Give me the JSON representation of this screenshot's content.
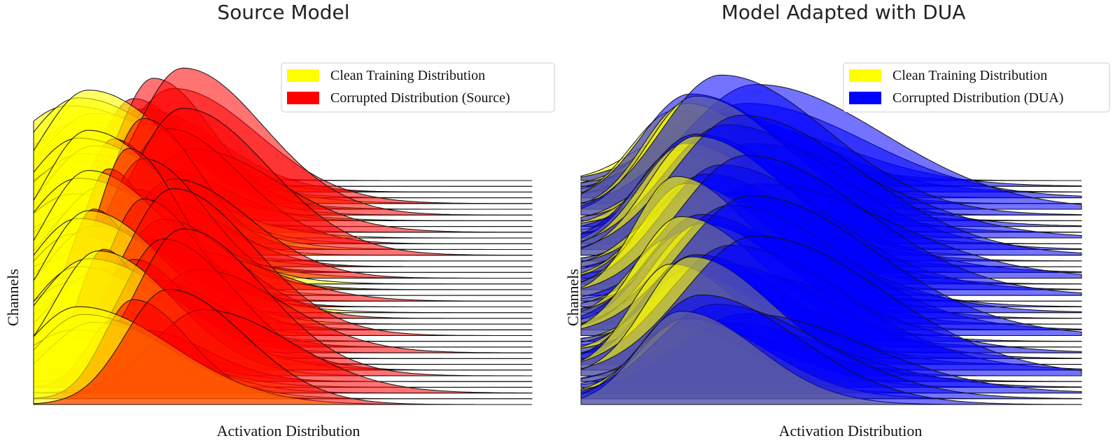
{
  "chart_data": [
    {
      "type": "area",
      "subtype": "ridgeline",
      "title": "Source Model",
      "xlabel": "Activation Distribution",
      "ylabel": "Channels",
      "x_ticks": "none",
      "y_ticks": "none",
      "grid": false,
      "legend_position": "top-right",
      "legend": [
        {
          "label": "Clean Training Distribution",
          "color": "#ffff00"
        },
        {
          "label": "Corrupted Distribution (Source)",
          "color": "#ff0000"
        }
      ],
      "channels": 40,
      "x_range": [
        0,
        1
      ],
      "series": [
        {
          "name": "Clean Training Distribution",
          "color": "#ffff00",
          "channel_peak_x": [
            0.06,
            0.08,
            0.1,
            0.12,
            0.07,
            0.09,
            0.11,
            0.13,
            0.06,
            0.08,
            0.1,
            0.12,
            0.09,
            0.11,
            0.07,
            0.1,
            0.12,
            0.08,
            0.14,
            0.09,
            0.11,
            0.07,
            0.1,
            0.13,
            0.08,
            0.12,
            0.09,
            0.11,
            0.07,
            0.1,
            0.08,
            0.12,
            0.09,
            0.11,
            0.13,
            0.1,
            0.08,
            0.12,
            0.1,
            0.09
          ],
          "channel_width": [
            0.2,
            0.18,
            0.22,
            0.2,
            0.25,
            0.22,
            0.2,
            0.24,
            0.19,
            0.21,
            0.23,
            0.2,
            0.22,
            0.18,
            0.2,
            0.21,
            0.19,
            0.23,
            0.2,
            0.22,
            0.18,
            0.21,
            0.2,
            0.22,
            0.19,
            0.2,
            0.21,
            0.18,
            0.22,
            0.2,
            0.21,
            0.19,
            0.2,
            0.22,
            0.18,
            0.2,
            0.21,
            0.19,
            0.2,
            0.22
          ]
        },
        {
          "name": "Corrupted Distribution (Source)",
          "color": "#ff0000",
          "channel_peak_x": [
            0.14,
            0.18,
            0.22,
            0.2,
            0.28,
            0.24,
            0.3,
            0.26,
            0.2,
            0.32,
            0.16,
            0.27,
            0.22,
            0.3,
            0.18,
            0.25,
            0.2,
            0.28,
            0.15,
            0.22,
            0.19,
            0.3,
            0.24,
            0.17,
            0.26,
            0.12,
            0.22,
            0.28,
            0.18,
            0.24,
            0.33,
            0.2,
            0.14,
            0.26,
            0.3,
            0.22,
            0.16,
            0.34,
            0.2,
            0.27
          ],
          "channel_width": [
            0.16,
            0.12,
            0.18,
            0.13,
            0.2,
            0.14,
            0.19,
            0.15,
            0.12,
            0.2,
            0.11,
            0.17,
            0.13,
            0.2,
            0.12,
            0.16,
            0.14,
            0.18,
            0.1,
            0.15,
            0.12,
            0.2,
            0.15,
            0.11,
            0.17,
            0.1,
            0.14,
            0.19,
            0.12,
            0.16,
            0.2,
            0.13,
            0.1,
            0.17,
            0.19,
            0.15,
            0.11,
            0.21,
            0.13,
            0.18
          ]
        }
      ]
    },
    {
      "type": "area",
      "subtype": "ridgeline",
      "title": "Model Adapted with DUA",
      "xlabel": "Activation Distribution",
      "ylabel": "Channels",
      "x_ticks": "none",
      "y_ticks": "none",
      "grid": false,
      "legend_position": "top-right",
      "legend": [
        {
          "label": "Clean Training Distribution",
          "color": "#ffff00"
        },
        {
          "label": "Corrupted Distribution (DUA)",
          "color": "#0000ff"
        }
      ],
      "channels": 40,
      "x_range": [
        0,
        1
      ],
      "series": [
        {
          "name": "Clean Training Distribution",
          "color": "#ffff00",
          "channel_peak_x": [
            0.18,
            0.22,
            0.2,
            0.24,
            0.19,
            0.21,
            0.23,
            0.18,
            0.2,
            0.22,
            0.24,
            0.19,
            0.21,
            0.23,
            0.2,
            0.18,
            0.22,
            0.2,
            0.24,
            0.21,
            0.19,
            0.23,
            0.2,
            0.22,
            0.18,
            0.21,
            0.24,
            0.2,
            0.19,
            0.22,
            0.2,
            0.23,
            0.21,
            0.18,
            0.22,
            0.2,
            0.24,
            0.19,
            0.21,
            0.2
          ],
          "channel_width": [
            0.18,
            0.2,
            0.17,
            0.2,
            0.19,
            0.18,
            0.2,
            0.17,
            0.19,
            0.18,
            0.2,
            0.17,
            0.19,
            0.2,
            0.18,
            0.17,
            0.19,
            0.18,
            0.2,
            0.19,
            0.17,
            0.2,
            0.18,
            0.19,
            0.17,
            0.18,
            0.2,
            0.19,
            0.17,
            0.18,
            0.19,
            0.2,
            0.18,
            0.17,
            0.19,
            0.18,
            0.2,
            0.17,
            0.19,
            0.18
          ]
        },
        {
          "name": "Corrupted Distribution (DUA)",
          "color": "#0000ff",
          "channel_peak_x": [
            0.24,
            0.3,
            0.27,
            0.33,
            0.22,
            0.35,
            0.28,
            0.25,
            0.31,
            0.26,
            0.34,
            0.23,
            0.29,
            0.32,
            0.27,
            0.24,
            0.3,
            0.36,
            0.25,
            0.28,
            0.33,
            0.22,
            0.29,
            0.31,
            0.26,
            0.24,
            0.3,
            0.34,
            0.27,
            0.25,
            0.32,
            0.28,
            0.23,
            0.3,
            0.35,
            0.26,
            0.29,
            0.33,
            0.27,
            0.24
          ],
          "channel_width": [
            0.22,
            0.26,
            0.24,
            0.28,
            0.21,
            0.3,
            0.25,
            0.23,
            0.27,
            0.24,
            0.29,
            0.22,
            0.26,
            0.28,
            0.24,
            0.22,
            0.27,
            0.3,
            0.23,
            0.25,
            0.28,
            0.21,
            0.26,
            0.27,
            0.24,
            0.22,
            0.26,
            0.29,
            0.24,
            0.23,
            0.28,
            0.25,
            0.22,
            0.27,
            0.3,
            0.24,
            0.26,
            0.28,
            0.25,
            0.23
          ]
        }
      ]
    }
  ]
}
